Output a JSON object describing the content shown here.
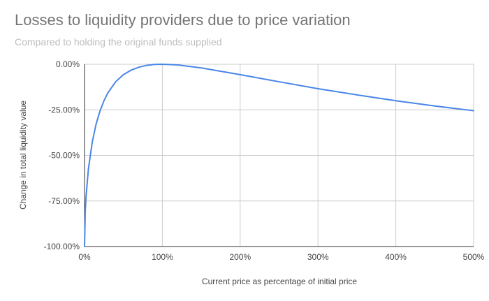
{
  "chart_data": {
    "type": "line",
    "title": "Losses to liquidity providers due to price variation",
    "subtitle": "Compared to holding the original funds supplied",
    "xlabel": "Current price as percentage of initial price",
    "ylabel": "Change in total liquidity value",
    "xlim": [
      0,
      500
    ],
    "ylim": [
      -100,
      0
    ],
    "x_ticks": [
      0,
      100,
      200,
      300,
      400,
      500
    ],
    "x_tick_labels": [
      "0%",
      "100%",
      "200%",
      "300%",
      "400%",
      "500%"
    ],
    "y_ticks": [
      0,
      -25,
      -50,
      -75,
      -100
    ],
    "y_tick_labels": [
      "0.00%",
      "-25.00%",
      "-50.00%",
      "-75.00%",
      "-100.00%"
    ],
    "grid": true,
    "legend": "none",
    "series": [
      {
        "color": "#4a86e8",
        "x": [
          0,
          1,
          2,
          5,
          10,
          15,
          20,
          25,
          30,
          40,
          50,
          60,
          70,
          80,
          90,
          100,
          120,
          150,
          200,
          250,
          300,
          350,
          400,
          450,
          500
        ],
        "y": [
          -100,
          -80.2,
          -72.3,
          -57.4,
          -42.5,
          -32.6,
          -25.5,
          -20.0,
          -15.7,
          -9.6,
          -5.7,
          -3.2,
          -1.6,
          -0.6,
          -0.1,
          0,
          -0.4,
          -2.0,
          -5.7,
          -9.6,
          -13.4,
          -16.8,
          -20.0,
          -22.9,
          -25.5
        ]
      }
    ]
  }
}
